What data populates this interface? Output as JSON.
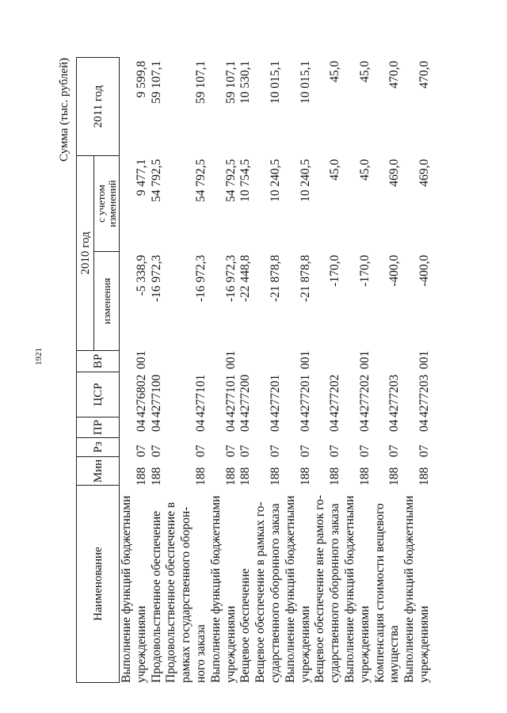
{
  "page_number": "1921",
  "units": "Сумма (тыс. рублей)",
  "header": {
    "name": "Наименование",
    "min": "Мин",
    "rz": "Рз",
    "pr": "ПР",
    "csr": "ЦСР",
    "vr": "ВР",
    "year2010": "2010 год",
    "changes": "изменения",
    "with_changes": "с учетом изменений",
    "year2011": "2011 год"
  },
  "rows": [
    {
      "name": [
        "Выполнение функций бюджетными",
        "учреждениями"
      ],
      "min": "188",
      "rz": "07",
      "pr": "04",
      "csr": "4276802",
      "vr": "001",
      "changes": "-5 338,9",
      "with_changes": "9 477,1",
      "y2011": "9 599,8"
    },
    {
      "name": [
        "Продовольственное обеспечение"
      ],
      "min": "188",
      "rz": "07",
      "pr": "04",
      "csr": "4277100",
      "vr": "",
      "changes": "-16 972,3",
      "with_changes": "54 792,5",
      "y2011": "59 107,1"
    },
    {
      "name": [
        "Продовольственное обеспечение в",
        "рамках государственного оборон-",
        "ного заказа"
      ],
      "min": "188",
      "rz": "07",
      "pr": "04",
      "csr": "4277101",
      "vr": "",
      "changes": "-16 972,3",
      "with_changes": "54 792,5",
      "y2011": "59 107,1"
    },
    {
      "name": [
        "Выполнение функций бюджетными",
        "учреждениями"
      ],
      "min": "188",
      "rz": "07",
      "pr": "04",
      "csr": "4277101",
      "vr": "001",
      "changes": "-16 972,3",
      "with_changes": "54 792,5",
      "y2011": "59 107,1"
    },
    {
      "name": [
        "Вещевое обеспечение"
      ],
      "min": "188",
      "rz": "07",
      "pr": "04",
      "csr": "4277200",
      "vr": "",
      "changes": "-22 448,8",
      "with_changes": "10 754,5",
      "y2011": "10 530,1"
    },
    {
      "name": [
        "Вещевое обеспечение в рамках го-",
        "сударственного оборонного заказа"
      ],
      "min": "188",
      "rz": "07",
      "pr": "04",
      "csr": "4277201",
      "vr": "",
      "changes": "-21 878,8",
      "with_changes": "10 240,5",
      "y2011": "10 015,1"
    },
    {
      "name": [
        "Выполнение функций бюджетными",
        "учреждениями"
      ],
      "min": "188",
      "rz": "07",
      "pr": "04",
      "csr": "4277201",
      "vr": "001",
      "changes": "-21 878,8",
      "with_changes": "10 240,5",
      "y2011": "10 015,1"
    },
    {
      "name": [
        "Вещевое обеспечение вне рамок го-",
        "сударственного оборонного заказа"
      ],
      "min": "188",
      "rz": "07",
      "pr": "04",
      "csr": "4277202",
      "vr": "",
      "changes": "-170,0",
      "with_changes": "45,0",
      "y2011": "45,0"
    },
    {
      "name": [
        "Выполнение функций бюджетными",
        "учреждениями"
      ],
      "min": "188",
      "rz": "07",
      "pr": "04",
      "csr": "4277202",
      "vr": "001",
      "changes": "-170,0",
      "with_changes": "45,0",
      "y2011": "45,0"
    },
    {
      "name": [
        "Компенсация стоимости вещевого",
        "имущества"
      ],
      "min": "188",
      "rz": "07",
      "pr": "04",
      "csr": "4277203",
      "vr": "",
      "changes": "-400,0",
      "with_changes": "469,0",
      "y2011": "470,0"
    },
    {
      "name": [
        "Выполнение функций бюджетными",
        "учреждениями"
      ],
      "min": "188",
      "rz": "07",
      "pr": "04",
      "csr": "4277203",
      "vr": "001",
      "changes": "-400,0",
      "with_changes": "469,0",
      "y2011": "470,0"
    }
  ]
}
